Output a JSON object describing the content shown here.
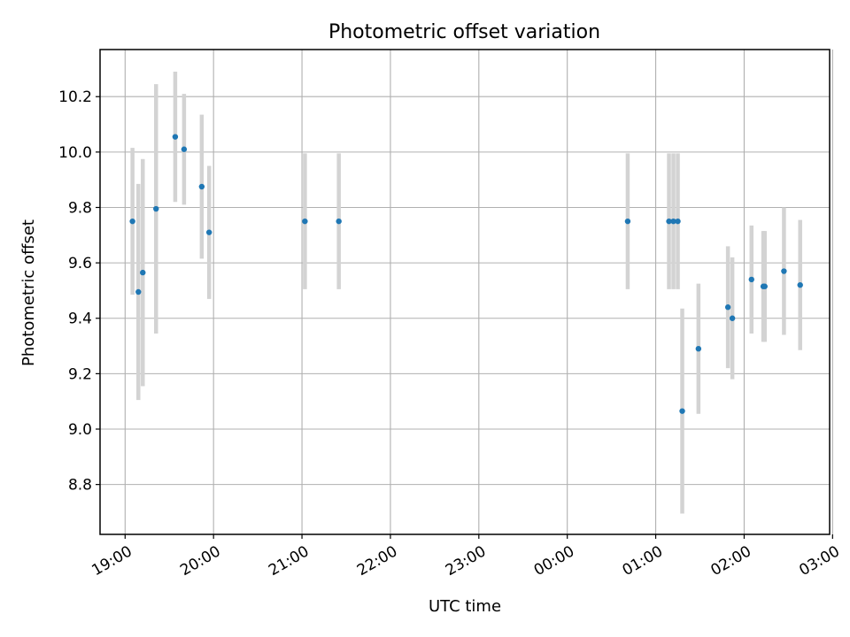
{
  "chart_data": {
    "type": "scatter",
    "title": "Photometric offset variation",
    "xlabel": "UTC time",
    "ylabel": "Photometric offset",
    "x_unit": "UTC time (HH:MM, spanning midnight)",
    "xlim": [
      "18:43",
      "26:58"
    ],
    "ylim": [
      8.62,
      10.37
    ],
    "x_ticks": [
      "19:00",
      "20:00",
      "21:00",
      "22:00",
      "23:00",
      "00:00",
      "01:00",
      "02:00",
      "03:00"
    ],
    "y_ticks": [
      8.8,
      9.0,
      9.2,
      9.4,
      9.6,
      9.8,
      10.0,
      10.2
    ],
    "grid": true,
    "marker_color": "#1f77b4",
    "errorbar_color": "#d3d3d3",
    "series": [
      {
        "points": [
          {
            "x": "19:05",
            "y": 9.75,
            "err": 0.265
          },
          {
            "x": "19:09",
            "y": 9.495,
            "err": 0.39
          },
          {
            "x": "19:12",
            "y": 9.565,
            "err": 0.41
          },
          {
            "x": "19:21",
            "y": 9.795,
            "err": 0.45
          },
          {
            "x": "19:34",
            "y": 10.055,
            "err": 0.235
          },
          {
            "x": "19:40",
            "y": 10.01,
            "err": 0.2
          },
          {
            "x": "19:52",
            "y": 9.875,
            "err": 0.26
          },
          {
            "x": "19:57",
            "y": 9.71,
            "err": 0.24
          },
          {
            "x": "21:02",
            "y": 9.75,
            "err": 0.245
          },
          {
            "x": "21:25",
            "y": 9.75,
            "err": 0.245
          },
          {
            "x": "00:41",
            "y": 9.75,
            "err": 0.245
          },
          {
            "x": "01:09",
            "y": 9.75,
            "err": 0.245
          },
          {
            "x": "01:12",
            "y": 9.75,
            "err": 0.245
          },
          {
            "x": "01:15",
            "y": 9.75,
            "err": 0.245
          },
          {
            "x": "01:18",
            "y": 9.065,
            "err": 0.37
          },
          {
            "x": "01:29",
            "y": 9.29,
            "err": 0.235
          },
          {
            "x": "01:49",
            "y": 9.44,
            "err": 0.22
          },
          {
            "x": "01:52",
            "y": 9.4,
            "err": 0.22
          },
          {
            "x": "02:05",
            "y": 9.54,
            "err": 0.195
          },
          {
            "x": "02:13",
            "y": 9.515,
            "err": 0.2
          },
          {
            "x": "02:14",
            "y": 9.515,
            "err": 0.2
          },
          {
            "x": "02:27",
            "y": 9.57,
            "err": 0.23
          },
          {
            "x": "02:38",
            "y": 9.52,
            "err": 0.235
          }
        ]
      }
    ]
  }
}
